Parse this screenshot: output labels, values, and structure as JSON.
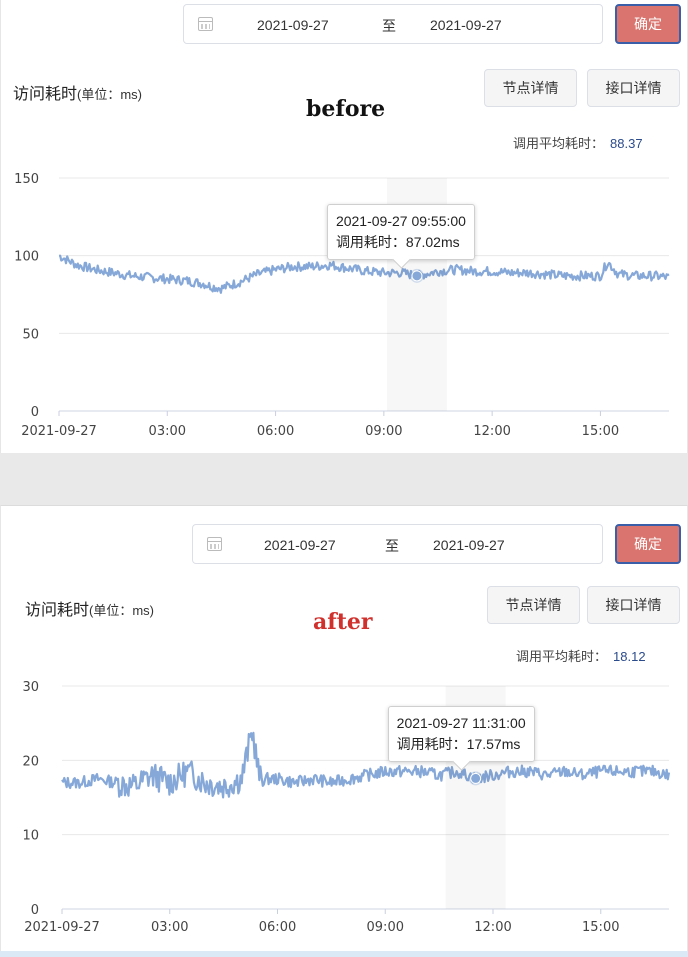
{
  "colors": {
    "confirm_bg": "#d9746f",
    "confirm_border": "#3a5fa8",
    "series_line": "#86a8d8",
    "avg_value": "#2b4b8c",
    "tag_before": "#111111",
    "tag_after": "#d0312d"
  },
  "icons": {
    "calendar": "calendar-icon"
  },
  "panels": [
    {
      "id": "before",
      "date_from": "2021-09-27",
      "date_sep": "至",
      "date_to": "2021-09-27",
      "confirm_label": "确定",
      "title": "访问耗时",
      "title_unit": "(单位：ms)",
      "tag": "before",
      "tab_node": "节点详情",
      "tab_api": "接口详情",
      "avg_label": "调用平均耗时：",
      "avg_value": "88.37",
      "tooltip_time": "2021-09-27 09:55:00",
      "tooltip_value": "调用耗时：87.02ms",
      "highlight": {
        "hour": 9.917,
        "value": 87.02
      },
      "x_ticks": [
        "2021-09-27",
        "03:00",
        "06:00",
        "09:00",
        "12:00",
        "15:00"
      ],
      "y_ticks": [
        "150",
        "100",
        "50",
        "0"
      ]
    },
    {
      "id": "after",
      "date_from": "2021-09-27",
      "date_sep": "至",
      "date_to": "2021-09-27",
      "confirm_label": "确定",
      "title": "访问耗时",
      "title_unit": "(单位：ms)",
      "tag": "after",
      "tab_node": "节点详情",
      "tab_api": "接口详情",
      "avg_label": "调用平均耗时：",
      "avg_value": "18.12",
      "tooltip_time": "2021-09-27 11:31:00",
      "tooltip_value": "调用耗时：17.57ms",
      "highlight": {
        "hour": 11.517,
        "value": 17.57
      },
      "x_ticks": [
        "2021-09-27",
        "03:00",
        "06:00",
        "09:00",
        "12:00",
        "15:00"
      ],
      "y_ticks": [
        "30",
        "20",
        "10",
        "0"
      ]
    }
  ],
  "chart_data": [
    {
      "type": "line",
      "title": "",
      "xlabel": "",
      "ylabel": "",
      "xlim": [
        0,
        16.9
      ],
      "ylim": [
        0,
        150
      ],
      "grid": true,
      "x_tick_labels": [
        "2021-09-27",
        "03:00",
        "06:00",
        "09:00",
        "12:00",
        "15:00"
      ],
      "series": [
        {
          "name": "",
          "x_hours": [
            0,
            0.25,
            0.5,
            1,
            1.5,
            2,
            2.5,
            3,
            3.5,
            4,
            4.25,
            4.5,
            5,
            5.5,
            6,
            6.5,
            7,
            7.5,
            8,
            8.5,
            9,
            9.5,
            9.917,
            10.5,
            11,
            11.5,
            12,
            12.5,
            13,
            13.5,
            14,
            14.5,
            15,
            15.2,
            15.5,
            16,
            16.5,
            16.9
          ],
          "values": [
            100,
            97,
            94,
            91,
            89,
            87,
            86,
            85,
            84,
            82,
            80,
            79,
            83,
            88,
            91,
            93,
            93,
            94,
            92,
            90,
            89,
            89,
            87.02,
            90,
            91,
            90,
            90,
            89,
            89,
            88,
            87,
            87,
            87,
            96,
            88,
            87,
            87,
            86
          ]
        }
      ]
    },
    {
      "type": "line",
      "title": "",
      "xlabel": "",
      "ylabel": "",
      "xlim": [
        0,
        16.9
      ],
      "ylim": [
        0,
        30
      ],
      "grid": true,
      "x_tick_labels": [
        "2021-09-27",
        "03:00",
        "06:00",
        "09:00",
        "12:00",
        "15:00"
      ],
      "series": [
        {
          "name": "",
          "x_hours": [
            0,
            0.5,
            1,
            1.5,
            2,
            2.5,
            3,
            3.5,
            4,
            4.5,
            5,
            5.3,
            5.5,
            6,
            6.5,
            7,
            7.5,
            8,
            8.5,
            9,
            9.5,
            10,
            10.5,
            11,
            11.517,
            12,
            12.5,
            13,
            13.5,
            14,
            14.5,
            15,
            15.5,
            16,
            16.5,
            16.9
          ],
          "values": [
            17,
            17,
            17.5,
            17,
            16.5,
            18,
            17,
            18.5,
            17,
            16.5,
            17.5,
            24,
            17.5,
            17.5,
            17,
            17.5,
            17,
            17.5,
            18,
            18.5,
            18.5,
            18.5,
            18,
            18.5,
            17.57,
            18,
            18.5,
            18.5,
            18,
            18.5,
            18,
            18.5,
            18.5,
            18.5,
            18.5,
            18
          ]
        }
      ]
    }
  ]
}
